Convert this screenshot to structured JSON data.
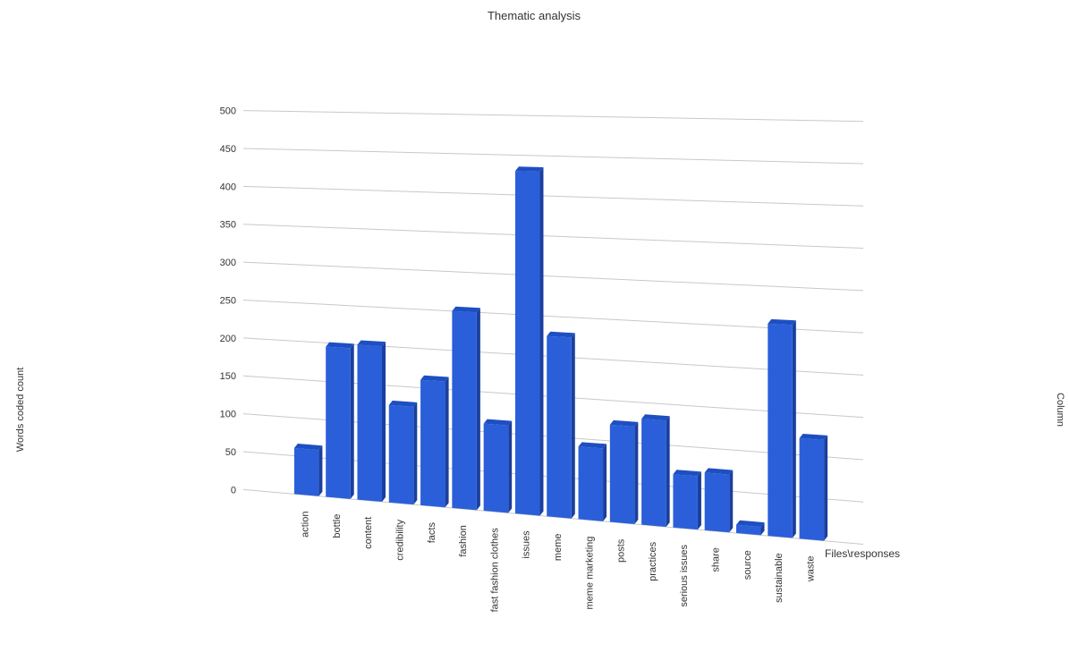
{
  "chart_data": {
    "type": "bar",
    "title": "Thematic analysis",
    "xlabel": "Files\\responses",
    "ylabel": "Words coded count",
    "legend_label": "Column",
    "categories": [
      "action",
      "bottle",
      "content",
      "credibility",
      "facts",
      "fashion",
      "fast fashion clothes",
      "issues",
      "meme",
      "meme marketing",
      "posts",
      "practices",
      "serious issues",
      "share",
      "source",
      "sustainable",
      "waste"
    ],
    "values": [
      60,
      195,
      200,
      125,
      160,
      250,
      110,
      430,
      225,
      90,
      120,
      130,
      65,
      70,
      10,
      255,
      120
    ],
    "ylim": [
      0,
      500
    ],
    "yticks": [
      0,
      50,
      100,
      150,
      200,
      250,
      300,
      350,
      400,
      450,
      500
    ],
    "grid": true,
    "bar_color": "#2b5fd9",
    "style": "3d-perspective"
  }
}
